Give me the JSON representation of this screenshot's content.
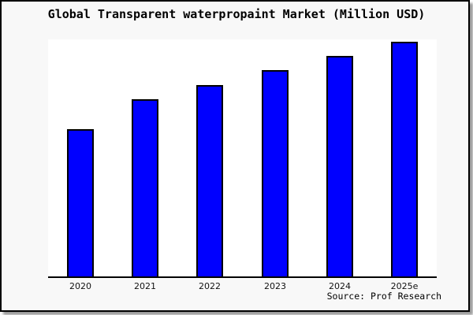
{
  "chart_data": {
    "type": "bar",
    "title": "Global Transparent waterpropaint Market (Million USD)",
    "categories": [
      "2020",
      "2021",
      "2022",
      "2023",
      "2024",
      "2025e"
    ],
    "values": [
      63,
      75.5,
      81.5,
      88,
      94,
      100
    ],
    "values_note": "no y-axis ticks or data labels shown; values estimated from bar heights, normalized so 2025e = 100",
    "xlabel": "",
    "ylabel": "",
    "ylim": [
      0,
      101
    ],
    "grid": false,
    "legend": false,
    "source_note": "Source: Prof Research",
    "colors": {
      "bar_fill": "#0000ff",
      "bar_border": "#000000",
      "axis_line": "#000000",
      "plot_background": "#ffffff",
      "page_background": "#f8f8f8",
      "frame_border": "#000000",
      "title_text": "#000000"
    }
  }
}
